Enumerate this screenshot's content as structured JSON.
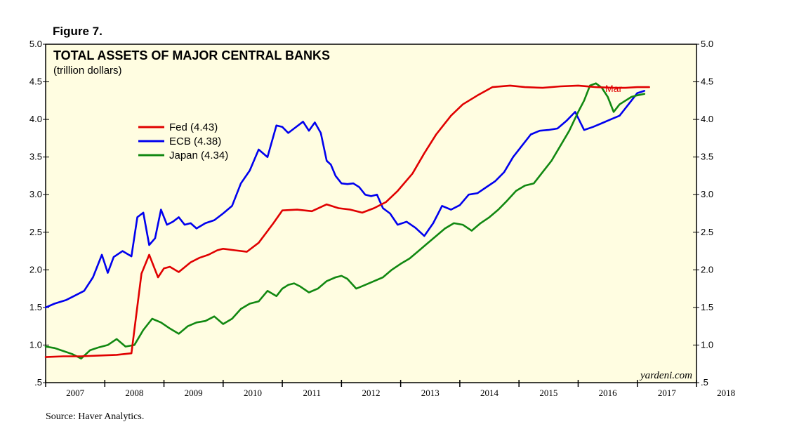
{
  "figure_label": "Figure 7.",
  "source": "Source: Haver Analytics.",
  "watermark": "yardeni.com",
  "end_label": "Mar",
  "colors": {
    "plot_bg": "#fffde1",
    "fed": "#e00000",
    "ecb": "#0000ee",
    "japan": "#118811"
  },
  "chart_data": {
    "type": "line",
    "title": "TOTAL ASSETS OF MAJOR CENTRAL BANKS",
    "subtitle": "(trillion dollars)",
    "xlabel": "",
    "ylabel": "",
    "xlim": [
      2007.0,
      2018.0
    ],
    "ylim": [
      0.5,
      5.0
    ],
    "y_ticks": [
      0.5,
      1.0,
      1.5,
      2.0,
      2.5,
      3.0,
      3.5,
      4.0,
      4.5,
      5.0
    ],
    "y_tick_labels": [
      ".5",
      "1.0",
      "1.5",
      "2.0",
      "2.5",
      "3.0",
      "3.5",
      "4.0",
      "4.5",
      "5.0"
    ],
    "x_tick_labels": [
      "2007",
      "2008",
      "2009",
      "2010",
      "2011",
      "2012",
      "2013",
      "2014",
      "2015",
      "2016",
      "2017",
      "2018"
    ],
    "grid": false,
    "legend_position": "upper-left",
    "series": [
      {
        "name": "Fed",
        "legend_label": "Fed (4.43)",
        "color": "#e00000",
        "x": [
          2007.0,
          2007.3,
          2007.6,
          2007.9,
          2008.2,
          2008.45,
          2008.62,
          2008.75,
          2008.9,
          2009.0,
          2009.1,
          2009.25,
          2009.45,
          2009.6,
          2009.75,
          2009.9,
          2010.0,
          2010.2,
          2010.4,
          2010.6,
          2010.85,
          2011.0,
          2011.25,
          2011.5,
          2011.75,
          2011.95,
          2012.15,
          2012.35,
          2012.55,
          2012.75,
          2012.95,
          2013.2,
          2013.4,
          2013.6,
          2013.85,
          2014.05,
          2014.3,
          2014.55,
          2014.85,
          2015.1,
          2015.4,
          2015.7,
          2016.0,
          2016.3,
          2016.6,
          2016.8,
          2017.0,
          2017.2
        ],
        "values": [
          0.84,
          0.85,
          0.85,
          0.86,
          0.87,
          0.89,
          1.95,
          2.2,
          1.9,
          2.02,
          2.04,
          1.97,
          2.1,
          2.16,
          2.2,
          2.26,
          2.28,
          2.26,
          2.24,
          2.36,
          2.62,
          2.79,
          2.8,
          2.78,
          2.87,
          2.82,
          2.8,
          2.76,
          2.82,
          2.9,
          3.05,
          3.28,
          3.55,
          3.8,
          4.05,
          4.2,
          4.32,
          4.43,
          4.45,
          4.43,
          4.42,
          4.44,
          4.45,
          4.43,
          4.42,
          4.42,
          4.43,
          4.43
        ]
      },
      {
        "name": "ECB",
        "legend_label": "ECB (4.38)",
        "color": "#0000ee",
        "x": [
          2007.0,
          2007.15,
          2007.35,
          2007.5,
          2007.65,
          2007.8,
          2007.95,
          2008.05,
          2008.15,
          2008.3,
          2008.45,
          2008.55,
          2008.65,
          2008.75,
          2008.85,
          2008.95,
          2009.05,
          2009.15,
          2009.25,
          2009.35,
          2009.45,
          2009.55,
          2009.7,
          2009.85,
          2010.0,
          2010.15,
          2010.3,
          2010.45,
          2010.6,
          2010.75,
          2010.9,
          2011.0,
          2011.1,
          2011.2,
          2011.35,
          2011.45,
          2011.55,
          2011.65,
          2011.75,
          2011.82,
          2011.9,
          2012.0,
          2012.1,
          2012.2,
          2012.3,
          2012.4,
          2012.5,
          2012.6,
          2012.7,
          2012.82,
          2012.95,
          2013.1,
          2013.25,
          2013.4,
          2013.55,
          2013.7,
          2013.85,
          2014.0,
          2014.15,
          2014.3,
          2014.45,
          2014.6,
          2014.75,
          2014.9,
          2015.05,
          2015.2,
          2015.35,
          2015.5,
          2015.65,
          2015.8,
          2015.95,
          2016.1,
          2016.25,
          2016.4,
          2016.55,
          2016.7,
          2016.85,
          2017.0,
          2017.12
        ],
        "values": [
          1.5,
          1.55,
          1.6,
          1.66,
          1.72,
          1.9,
          2.2,
          1.96,
          2.17,
          2.25,
          2.18,
          2.7,
          2.76,
          2.33,
          2.42,
          2.8,
          2.6,
          2.64,
          2.7,
          2.6,
          2.62,
          2.55,
          2.62,
          2.66,
          2.75,
          2.85,
          3.15,
          3.32,
          3.6,
          3.5,
          3.92,
          3.9,
          3.82,
          3.88,
          3.97,
          3.85,
          3.96,
          3.82,
          3.45,
          3.4,
          3.25,
          3.15,
          3.14,
          3.15,
          3.1,
          3.0,
          2.98,
          3.0,
          2.82,
          2.75,
          2.6,
          2.64,
          2.56,
          2.45,
          2.62,
          2.85,
          2.8,
          2.86,
          3.0,
          3.02,
          3.1,
          3.18,
          3.3,
          3.5,
          3.65,
          3.8,
          3.85,
          3.86,
          3.88,
          3.98,
          4.1,
          3.86,
          3.9,
          3.95,
          4.0,
          4.05,
          4.2,
          4.35,
          4.38
        ]
      },
      {
        "name": "Japan",
        "legend_label": "Japan (4.34)",
        "color": "#118811",
        "x": [
          2007.0,
          2007.15,
          2007.3,
          2007.45,
          2007.6,
          2007.75,
          2007.9,
          2008.05,
          2008.2,
          2008.35,
          2008.5,
          2008.65,
          2008.8,
          2008.95,
          2009.1,
          2009.25,
          2009.4,
          2009.55,
          2009.7,
          2009.85,
          2010.0,
          2010.15,
          2010.3,
          2010.45,
          2010.6,
          2010.75,
          2010.9,
          2011.0,
          2011.1,
          2011.2,
          2011.3,
          2011.45,
          2011.6,
          2011.75,
          2011.9,
          2012.0,
          2012.1,
          2012.25,
          2012.4,
          2012.55,
          2012.7,
          2012.85,
          2013.0,
          2013.15,
          2013.3,
          2013.45,
          2013.6,
          2013.75,
          2013.9,
          2014.05,
          2014.2,
          2014.35,
          2014.5,
          2014.65,
          2014.8,
          2014.95,
          2015.1,
          2015.25,
          2015.4,
          2015.55,
          2015.7,
          2015.85,
          2016.0,
          2016.1,
          2016.2,
          2016.3,
          2016.4,
          2016.5,
          2016.6,
          2016.7,
          2016.8,
          2016.9,
          2017.0,
          2017.12
        ],
        "values": [
          0.98,
          0.96,
          0.92,
          0.88,
          0.82,
          0.93,
          0.97,
          1.0,
          1.08,
          0.98,
          1.0,
          1.2,
          1.35,
          1.3,
          1.22,
          1.15,
          1.25,
          1.3,
          1.32,
          1.38,
          1.28,
          1.35,
          1.48,
          1.55,
          1.58,
          1.72,
          1.65,
          1.75,
          1.8,
          1.82,
          1.78,
          1.7,
          1.75,
          1.85,
          1.9,
          1.92,
          1.88,
          1.75,
          1.8,
          1.85,
          1.9,
          2.0,
          2.08,
          2.15,
          2.25,
          2.35,
          2.45,
          2.55,
          2.62,
          2.6,
          2.52,
          2.62,
          2.7,
          2.8,
          2.92,
          3.05,
          3.12,
          3.15,
          3.3,
          3.45,
          3.65,
          3.85,
          4.1,
          4.25,
          4.45,
          4.48,
          4.42,
          4.3,
          4.1,
          4.2,
          4.25,
          4.3,
          4.32,
          4.34
        ]
      }
    ]
  }
}
